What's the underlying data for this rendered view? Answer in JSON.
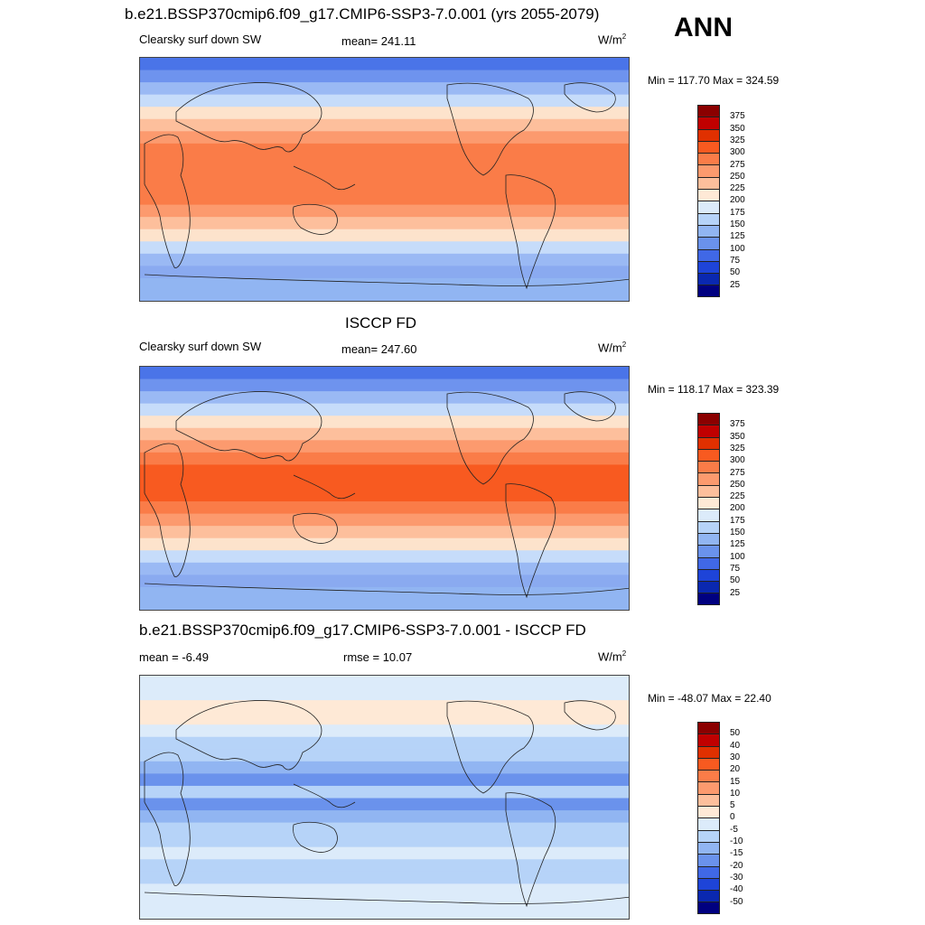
{
  "season": "ANN",
  "panels": [
    {
      "title": "b.e21.BSSP370cmip6.f09_g17.CMIP6-SSP3-7.0.001 (yrs 2055-2079)",
      "left_label": "Clearsky surf down SW",
      "center_label": "mean= 241.11",
      "units_base": "W/m",
      "units_exp": "2",
      "minmax": "Min = 117.70 Max = 324.59",
      "levels": [
        "375",
        "350",
        "325",
        "300",
        "275",
        "250",
        "225",
        "200",
        "175",
        "150",
        "125",
        "100",
        "75",
        "50",
        "25"
      ],
      "colors": [
        "#8b0000",
        "#c00000",
        "#e03000",
        "#f85a20",
        "#fa7c48",
        "#fc9a6e",
        "#fdbf9c",
        "#fee9d6",
        "#dcebfa",
        "#b6d3f8",
        "#91b5f2",
        "#6a92ec",
        "#4068e6",
        "#1e44d8",
        "#0a28b0",
        "#000080"
      ],
      "lat_band_colors": [
        "#4a74e8",
        "#6e93ee",
        "#9ab9f4",
        "#c6dcfa",
        "#fde3cc",
        "#fdbf9c",
        "#fc9a6e",
        "#fa7c48",
        "#fa7c48",
        "#fa7c48",
        "#fa7c48",
        "#fa7c48",
        "#fc9a6e",
        "#fdbf9c",
        "#fde3cc",
        "#c6dcfa",
        "#9ab9f4",
        "#8aaaf0",
        "#91b5f2",
        "#91b5f2"
      ]
    },
    {
      "title": "ISCCP FD",
      "left_label": "Clearsky surf down SW",
      "center_label": "mean= 247.60",
      "units_base": "W/m",
      "units_exp": "2",
      "minmax": "Min = 118.17 Max = 323.39",
      "levels": [
        "375",
        "350",
        "325",
        "300",
        "275",
        "250",
        "225",
        "200",
        "175",
        "150",
        "125",
        "100",
        "75",
        "50",
        "25"
      ],
      "colors": [
        "#8b0000",
        "#c00000",
        "#e03000",
        "#f85a20",
        "#fa7c48",
        "#fc9a6e",
        "#fdbf9c",
        "#fee9d6",
        "#dcebfa",
        "#b6d3f8",
        "#91b5f2",
        "#6a92ec",
        "#4068e6",
        "#1e44d8",
        "#0a28b0",
        "#000080"
      ],
      "lat_band_colors": [
        "#4a74e8",
        "#6e93ee",
        "#9ab9f4",
        "#c6dcfa",
        "#fde3cc",
        "#fdbf9c",
        "#fc9a6e",
        "#fa7c48",
        "#f85a20",
        "#f85a20",
        "#f85a20",
        "#fa7c48",
        "#fc9a6e",
        "#fdbf9c",
        "#fde3cc",
        "#c6dcfa",
        "#9ab9f4",
        "#8aaaf0",
        "#91b5f2",
        "#91b5f2"
      ]
    },
    {
      "title": "b.e21.BSSP370cmip6.f09_g17.CMIP6-SSP3-7.0.001 - ISCCP FD",
      "left_label": "mean =  -6.49",
      "center_label": "rmse =  10.07",
      "units_base": "W/m",
      "units_exp": "2",
      "minmax": "Min = -48.07 Max =  22.40",
      "levels": [
        "50",
        "40",
        "30",
        "20",
        "15",
        "10",
        "5",
        "0",
        "-5",
        "-10",
        "-15",
        "-20",
        "-30",
        "-40",
        "-50"
      ],
      "colors": [
        "#8b0000",
        "#c00000",
        "#e03000",
        "#f85a20",
        "#fa7c48",
        "#fc9a6e",
        "#fdbf9c",
        "#fee9d6",
        "#dcebfa",
        "#b6d3f8",
        "#91b5f2",
        "#6a92ec",
        "#4068e6",
        "#1e44d8",
        "#0a28b0",
        "#000080"
      ],
      "lat_band_colors": [
        "#dcebfa",
        "#dcebfa",
        "#fee9d6",
        "#fee9d6",
        "#dcebfa",
        "#b6d3f8",
        "#b6d3f8",
        "#91b5f2",
        "#6a92ec",
        "#b6d3f8",
        "#6a92ec",
        "#91b5f2",
        "#b6d3f8",
        "#b6d3f8",
        "#dcebfa",
        "#b6d3f8",
        "#b6d3f8",
        "#dcebfa",
        "#dcebfa",
        "#dcebfa"
      ]
    }
  ]
}
